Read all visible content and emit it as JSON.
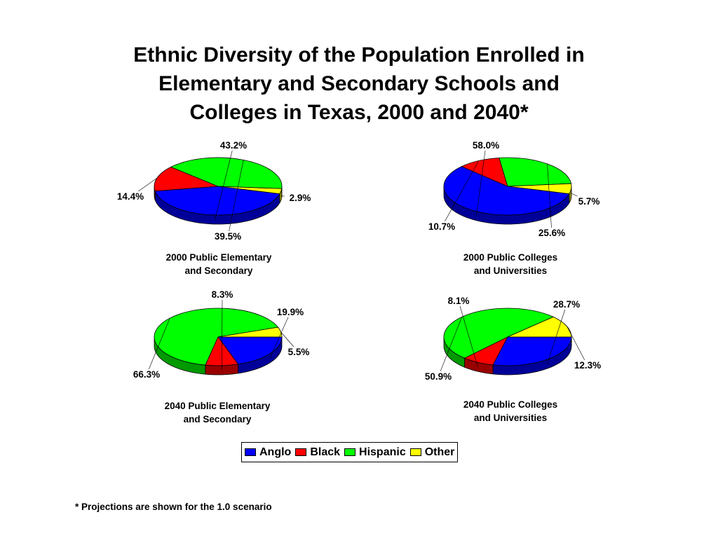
{
  "title": {
    "line1": "Ethnic Diversity of the Population Enrolled in",
    "line2": "Elementary and Secondary Schools and",
    "line3": "Colleges in Texas, 2000 and 2040*"
  },
  "colors": {
    "Anglo": "#0000ff",
    "Black": "#ff0000",
    "Hispanic": "#00ff00",
    "Other": "#ffff00"
  },
  "legend": {
    "placement": "bottom-center",
    "items": [
      "Anglo",
      "Black",
      "Hispanic",
      "Other"
    ]
  },
  "chart_data": [
    {
      "type": "pie",
      "caption": [
        "2000 Public Elementary",
        "and Secondary"
      ],
      "categories": [
        "Anglo",
        "Black",
        "Hispanic",
        "Other"
      ],
      "values": [
        43.2,
        14.4,
        39.5,
        2.9
      ],
      "labels": [
        "43.2%",
        "14.4%",
        "39.5%",
        "2.9%"
      ]
    },
    {
      "type": "pie",
      "caption": [
        "2000 Public Colleges",
        "and Universities"
      ],
      "categories": [
        "Anglo",
        "Black",
        "Hispanic",
        "Other"
      ],
      "values": [
        58.0,
        10.7,
        25.6,
        5.7
      ],
      "labels": [
        "58.0%",
        "10.7%",
        "25.6%",
        "5.7%"
      ]
    },
    {
      "type": "pie",
      "caption": [
        "2040 Public Elementary",
        "and Secondary"
      ],
      "categories": [
        "Anglo",
        "Black",
        "Hispanic",
        "Other"
      ],
      "values": [
        19.9,
        8.3,
        66.3,
        5.5
      ],
      "labels": [
        "19.9%",
        "8.3%",
        "66.3%",
        "5.5%"
      ]
    },
    {
      "type": "pie",
      "caption": [
        "2040 Public Colleges",
        "and Universities"
      ],
      "categories": [
        "Anglo",
        "Black",
        "Hispanic",
        "Other"
      ],
      "values": [
        28.7,
        8.1,
        50.9,
        12.3
      ],
      "labels": [
        "28.7%",
        "8.1%",
        "50.9%",
        "12.3%"
      ]
    }
  ],
  "footnote": "* Projections are shown for the 1.0 scenario"
}
